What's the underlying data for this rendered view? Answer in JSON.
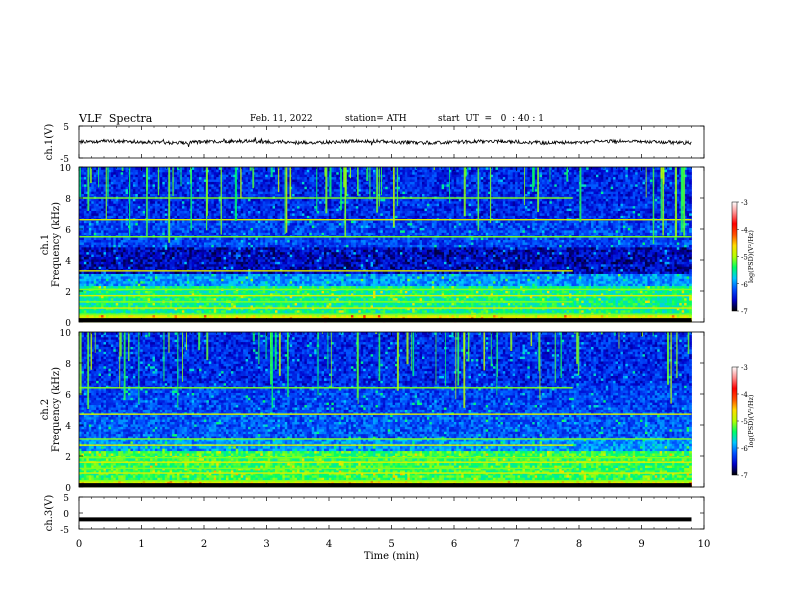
{
  "header": {
    "title": "VLF  Spectra",
    "date": "Feb. 11, 2022",
    "station": "station= ATH",
    "start": "start  UT  =   0  : 40 : 1"
  },
  "chart_data": [
    {
      "type": "line",
      "name": "ch1-waveform",
      "ylabel": "ch.1(V)",
      "ylim": [
        -5,
        5
      ],
      "yticks": [
        "5",
        "-5"
      ],
      "xlim": [
        0,
        10
      ],
      "baseline": 0,
      "data_end": 9.8,
      "color": "#000000"
    },
    {
      "type": "heatmap",
      "name": "ch1-spectrogram",
      "ylabel_channel": "ch.1",
      "ylabel": "Frequency  (kHz)",
      "ylim": [
        0,
        10
      ],
      "yticks": [
        "0",
        "2",
        "4",
        "6",
        "8",
        "10"
      ],
      "xlim": [
        0,
        10
      ],
      "data_end": 9.8,
      "colorbar": {
        "label": "log(PSD)(V²/Hz)",
        "min": -7,
        "max": -3,
        "ticks": [
          "-3",
          "-4",
          "-5",
          "-6",
          "-7"
        ]
      }
    },
    {
      "type": "heatmap",
      "name": "ch2-spectrogram",
      "ylabel_channel": "ch.2",
      "ylabel": "Frequency  (kHz)",
      "ylim": [
        0,
        10
      ],
      "yticks": [
        "0",
        "2",
        "4",
        "6",
        "8",
        "10"
      ],
      "xlim": [
        0,
        10
      ],
      "data_end": 9.8,
      "colorbar": {
        "label": "log(PSD)(V²/Hz)",
        "min": -7,
        "max": -3,
        "ticks": [
          "-3",
          "-4",
          "-5",
          "-6",
          "-7"
        ]
      }
    },
    {
      "type": "line",
      "name": "ch3-waveform",
      "ylabel": "ch.3(V)",
      "ylim": [
        -5,
        5
      ],
      "yticks": [
        "5",
        "0",
        "-5"
      ],
      "xlim": [
        0,
        10
      ],
      "value": -2,
      "data_end": 9.8,
      "color": "#000000"
    }
  ],
  "xaxis": {
    "label": "Time  (min)",
    "ticks": [
      "0",
      "1",
      "2",
      "3",
      "4",
      "5",
      "6",
      "7",
      "8",
      "9",
      "10"
    ]
  },
  "colors": {
    "colormap": [
      "#000000",
      "#0000c8",
      "#0050ff",
      "#00c8ff",
      "#00ff64",
      "#b4ff00",
      "#ffdc00",
      "#ff5000",
      "#ff0000",
      "#ff8c8c",
      "#ffffff"
    ]
  }
}
